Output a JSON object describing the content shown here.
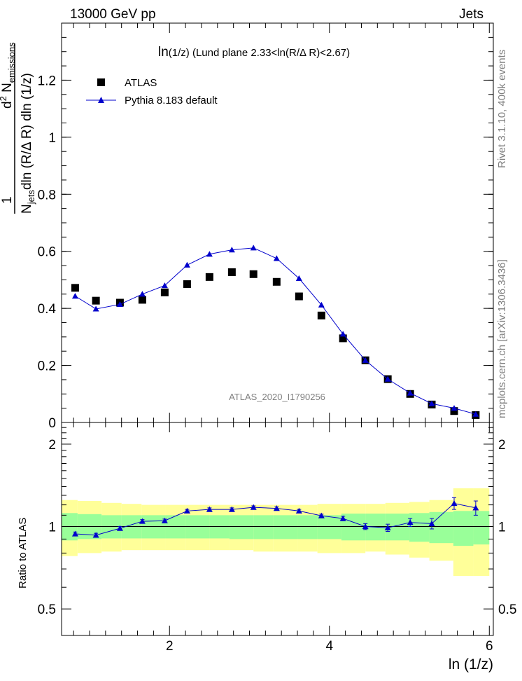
{
  "header": {
    "left": "13000 GeV pp",
    "right": "Jets"
  },
  "side_text": {
    "rivet": "Rivet 3.1.10,  400k events",
    "source": "mcplots.cern.ch [arXiv:1306.3436]"
  },
  "chart_data": {
    "type": "scatter",
    "title": "ln(1/z) (Lund plane 2.33<ln(R/Δ R)<2.67)",
    "title_parts": {
      "a": "ln",
      "b": "(1/z)",
      "c": " (Lund plane 2.33<ln(R/",
      "d": "Δ",
      "e": " R)<2.67)"
    },
    "ylabel_parts": {
      "one": "1",
      "n": "N",
      "jets_sub": "jets",
      "denom_rest": "dln (R/",
      "delta": "Δ",
      "denom_end": " R) dln (1/z)",
      "num_d": "d",
      "num_sup": "2",
      "num_n": " N",
      "num_sub": "emissions"
    },
    "xlabel": "ln (1/z)",
    "ratio_ylabel": "Ratio to ATLAS",
    "watermark": "ATLAS_2020_I1790256",
    "xlim": [
      0.65,
      6.05
    ],
    "ylim": [
      0,
      1.4
    ],
    "ratio_ylim": [
      0.4,
      2.4
    ],
    "x_ticks": [
      2,
      4,
      6
    ],
    "y_ticks": [
      0,
      0.2,
      0.4,
      0.6,
      0.8,
      1,
      1.2
    ],
    "y_tick_labels": [
      "0",
      "0.2",
      "0.4",
      "0.6",
      "0.8",
      "1",
      "1.2"
    ],
    "ratio_ticks": [
      0.5,
      1,
      2
    ],
    "ratio_tick_labels": [
      "0.5",
      "1",
      "2"
    ],
    "bin_edges": [
      0.65,
      0.85,
      1.15,
      1.4,
      1.65,
      1.95,
      2.2,
      2.5,
      2.75,
      3.05,
      3.3,
      3.6,
      3.85,
      4.15,
      4.45,
      4.7,
      5.0,
      5.25,
      5.55,
      5.8,
      6.0
    ],
    "x": [
      0.82,
      1.08,
      1.38,
      1.66,
      1.94,
      2.22,
      2.5,
      2.78,
      3.05,
      3.34,
      3.62,
      3.9,
      4.17,
      4.45,
      4.73,
      5.01,
      5.28,
      5.56,
      5.83
    ],
    "legend": [
      {
        "name": "ATLAS",
        "color": "#000000",
        "marker": "square"
      },
      {
        "name": "Pythia 8.183 default",
        "color": "#0000cc",
        "marker": "triangle"
      }
    ],
    "series": [
      {
        "name": "ATLAS",
        "values": [
          0.472,
          0.427,
          0.42,
          0.43,
          0.456,
          0.485,
          0.51,
          0.527,
          0.52,
          0.493,
          0.442,
          0.375,
          0.295,
          0.218,
          0.152,
          0.1,
          0.063,
          0.04,
          0.026
        ]
      },
      {
        "name": "Pythia 8.183 default",
        "values": [
          0.443,
          0.398,
          0.414,
          0.45,
          0.48,
          0.552,
          0.59,
          0.605,
          0.612,
          0.575,
          0.505,
          0.412,
          0.31,
          0.218,
          0.152,
          0.103,
          0.066,
          0.05,
          0.029
        ],
        "errors": [
          0.003,
          0.003,
          0.003,
          0.003,
          0.004,
          0.005,
          0.006,
          0.007,
          0.008,
          0.006,
          0.005,
          0.005,
          0.004,
          0.003,
          0.003,
          0.002,
          0.002,
          0.002,
          0.002
        ]
      }
    ],
    "ratio": {
      "values": [
        0.94,
        0.93,
        0.985,
        1.045,
        1.05,
        1.14,
        1.155,
        1.155,
        1.175,
        1.165,
        1.14,
        1.095,
        1.07,
        1.0,
        0.99,
        1.035,
        1.025,
        1.215,
        1.17
      ],
      "errors": [
        0.015,
        0.015,
        0.015,
        0.015,
        0.015,
        0.015,
        0.015,
        0.015,
        0.015,
        0.015,
        0.015,
        0.015,
        0.02,
        0.025,
        0.03,
        0.035,
        0.045,
        0.06,
        0.07
      ],
      "green_band": [
        [
          0.89,
          1.12
        ],
        [
          0.9,
          1.11
        ],
        [
          0.905,
          1.1
        ],
        [
          0.905,
          1.1
        ],
        [
          0.905,
          1.1
        ],
        [
          0.905,
          1.1
        ],
        [
          0.905,
          1.1
        ],
        [
          0.905,
          1.1
        ],
        [
          0.9,
          1.1
        ],
        [
          0.9,
          1.1
        ],
        [
          0.9,
          1.1
        ],
        [
          0.9,
          1.1
        ],
        [
          0.9,
          1.1
        ],
        [
          0.89,
          1.115
        ],
        [
          0.89,
          1.115
        ],
        [
          0.89,
          1.115
        ],
        [
          0.88,
          1.12
        ],
        [
          0.87,
          1.13
        ],
        [
          0.85,
          1.14
        ],
        [
          0.86,
          1.14
        ]
      ],
      "yellow_band": [
        [
          0.78,
          1.25
        ],
        [
          0.8,
          1.24
        ],
        [
          0.81,
          1.22
        ],
        [
          0.82,
          1.21
        ],
        [
          0.82,
          1.2
        ],
        [
          0.82,
          1.2
        ],
        [
          0.82,
          1.2
        ],
        [
          0.82,
          1.2
        ],
        [
          0.82,
          1.2
        ],
        [
          0.81,
          1.2
        ],
        [
          0.81,
          1.2
        ],
        [
          0.81,
          1.2
        ],
        [
          0.8,
          1.21
        ],
        [
          0.8,
          1.21
        ],
        [
          0.81,
          1.21
        ],
        [
          0.79,
          1.22
        ],
        [
          0.77,
          1.23
        ],
        [
          0.75,
          1.25
        ],
        [
          0.66,
          1.38
        ],
        [
          0.66,
          1.38
        ]
      ],
      "green_color": "#99ff99",
      "yellow_color": "#ffff99"
    }
  }
}
